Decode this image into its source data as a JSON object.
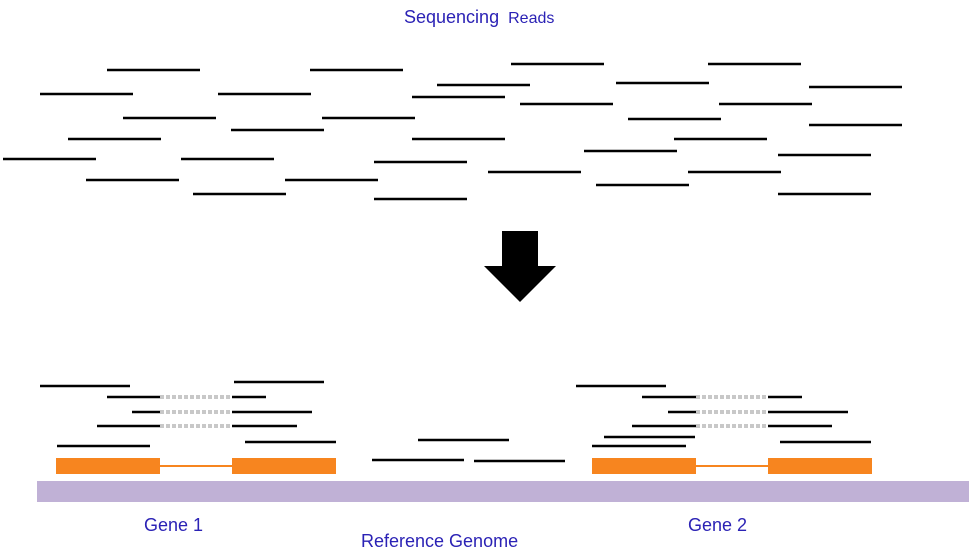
{
  "labels": {
    "title_word1": "Sequencing",
    "title_word2": "Reads",
    "gene1": "Gene 1",
    "gene2": "Gene 2",
    "reference": "Reference Genome"
  },
  "colors": {
    "label_text": "#2b22b5",
    "read_line": "#000000",
    "exon": "#f7851f",
    "intron": "#f7851f",
    "genome_bar": "#c0b1d6",
    "spliced_gap": "#c8c8c8",
    "arrow": "#000000"
  },
  "icons": {
    "arrow": "down-arrow-icon"
  }
}
